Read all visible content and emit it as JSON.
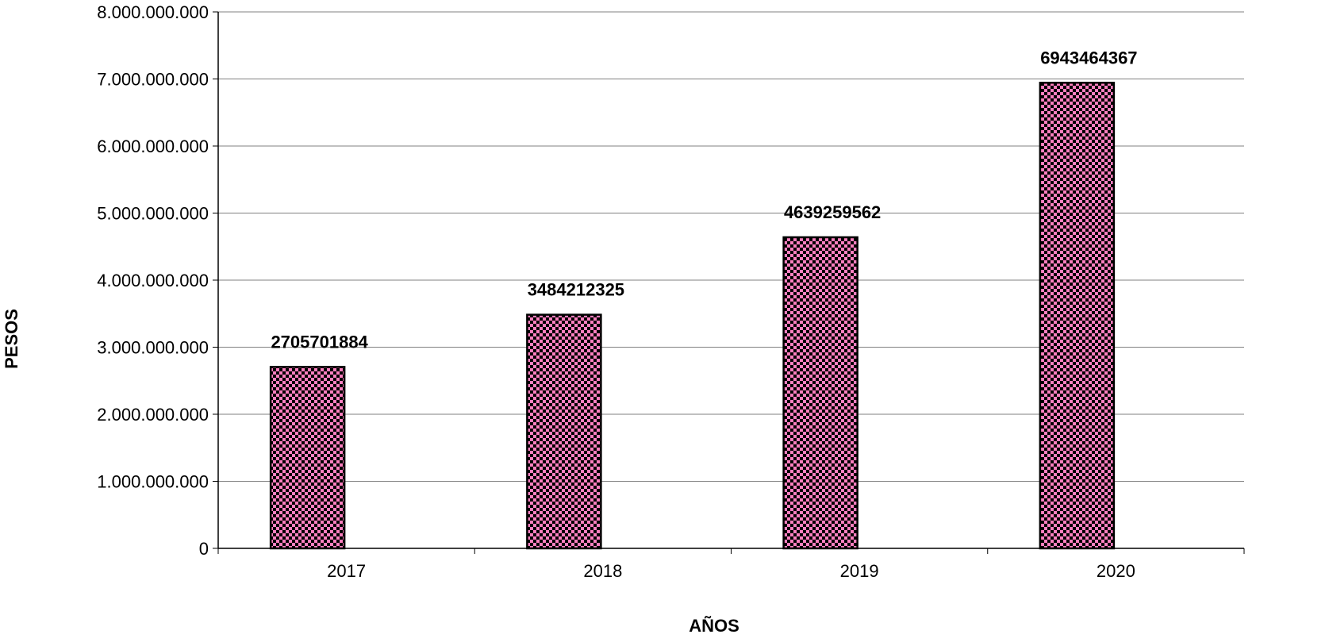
{
  "chart_data": {
    "type": "bar",
    "title": "",
    "xlabel": "AÑOS",
    "ylabel": "PESOS",
    "categories": [
      "2017",
      "2018",
      "2019",
      "2020"
    ],
    "values": [
      2705701884,
      3484212325,
      4639259562,
      6943464367
    ],
    "data_labels": [
      "2705701884",
      "3484212325",
      "4639259562",
      "6943464367"
    ],
    "ylim": [
      0,
      8000000000
    ],
    "y_ticks": [
      0,
      1000000000,
      2000000000,
      3000000000,
      4000000000,
      5000000000,
      6000000000,
      7000000000,
      8000000000
    ],
    "y_tick_labels": [
      "0",
      "1.000.000.000",
      "2.000.000.000",
      "3.000.000.000",
      "4.000.000.000",
      "5.000.000.000",
      "6.000.000.000",
      "7.000.000.000",
      "8.000.000.000"
    ],
    "grid": true,
    "legend": "none",
    "colors": {
      "bar_fill_light": "#ff7fbf",
      "bar_fill_dark": "#000000",
      "bar_border": "#000000",
      "gridline": "#808080",
      "axis": "#000000"
    }
  }
}
